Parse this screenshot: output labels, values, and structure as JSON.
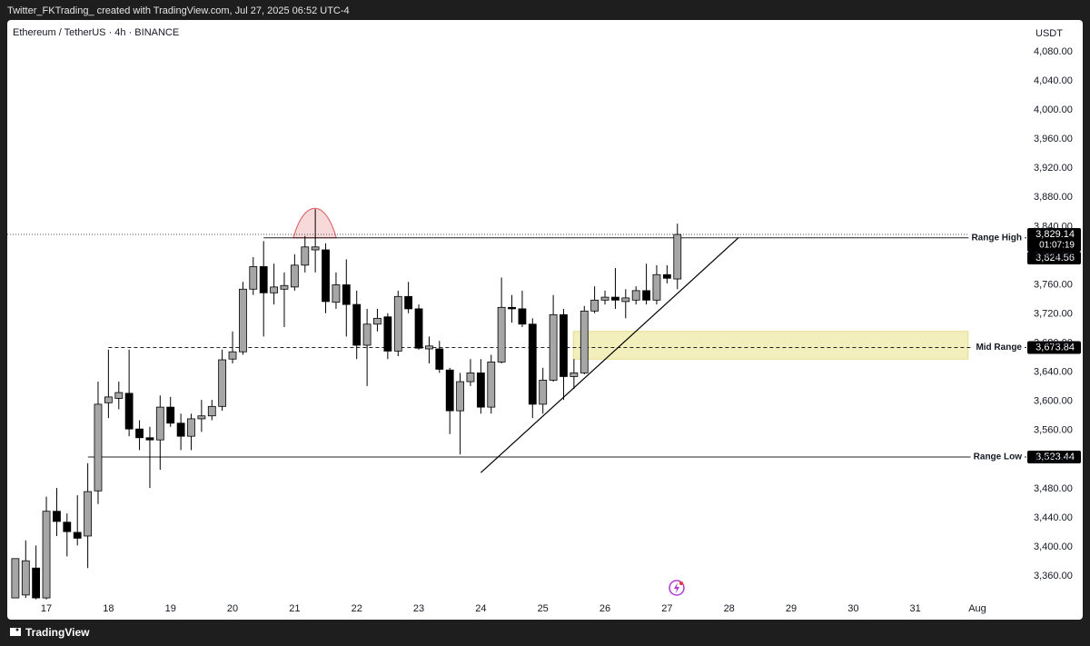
{
  "header": "Twitter_FKTrading_ created with TradingView.com, Jul 27, 2025 06:52 UTC-4",
  "footer": "TradingView",
  "chart_data": {
    "type": "candlestick",
    "title": "Ethereum / TetherUS · 4h · BINANCE",
    "y_unit": "USDT",
    "up_color": "#a6a6a6",
    "down_color": "#000000",
    "x": [
      16.5,
      16.667,
      16.833,
      17,
      17.167,
      17.333,
      17.5,
      17.667,
      17.833,
      18,
      18.167,
      18.333,
      18.5,
      18.667,
      18.833,
      19,
      19.167,
      19.333,
      19.5,
      19.667,
      19.833,
      20,
      20.167,
      20.333,
      20.5,
      20.667,
      20.833,
      21,
      21.167,
      21.333,
      21.5,
      21.667,
      21.833,
      22,
      22.167,
      22.333,
      22.5,
      22.667,
      22.833,
      23,
      23.167,
      23.333,
      23.5,
      23.667,
      23.833,
      24,
      24.167,
      24.333,
      24.5,
      24.667,
      24.833,
      25,
      25.167,
      25.333,
      25.5,
      25.667,
      25.833,
      26,
      26.167,
      26.333,
      26.5,
      26.667,
      26.833,
      27,
      27.167
    ],
    "open": [
      3330,
      3334,
      3371,
      3330,
      3449,
      3434,
      3420,
      3415,
      3477,
      3598,
      3604,
      3611,
      3562,
      3550,
      3547,
      3592,
      3570,
      3552,
      3576,
      3580,
      3593,
      3658,
      3668,
      3754,
      3785,
      3749,
      3754,
      3757,
      3787,
      3808,
      3808,
      3736,
      3760,
      3733,
      3677,
      3706,
      3716,
      3669,
      3744,
      3727,
      3672,
      3672,
      3643,
      3587,
      3627,
      3639,
      3592,
      3654,
      3729,
      3727,
      3706,
      3596,
      3629,
      3719,
      3634,
      3639,
      3724,
      3739,
      3743,
      3737,
      3739,
      3752,
      3739,
      3774,
      3768
    ],
    "high": [
      3384,
      3409,
      3402,
      3469,
      3481,
      3446,
      3471,
      3515,
      3627,
      3671,
      3627,
      3671,
      3574,
      3565,
      3608,
      3606,
      3583,
      3583,
      3602,
      3602,
      3671,
      3696,
      3764,
      3798,
      3820,
      3789,
      3777,
      3802,
      3827,
      3864,
      3817,
      3777,
      3795,
      3752,
      3727,
      3727,
      3721,
      3752,
      3764,
      3733,
      3689,
      3683,
      3646,
      3639,
      3658,
      3658,
      3664,
      3770,
      3746,
      3752,
      3714,
      3646,
      3746,
      3727,
      3658,
      3731,
      3758,
      3752,
      3783,
      3754,
      3758,
      3789,
      3787,
      3787,
      3844
    ],
    "low": [
      3330,
      3330,
      3328,
      3328,
      3415,
      3387,
      3402,
      3371,
      3459,
      3577,
      3589,
      3552,
      3533,
      3481,
      3506,
      3565,
      3533,
      3533,
      3558,
      3574,
      3587,
      3652,
      3664,
      3746,
      3689,
      3733,
      3702,
      3752,
      3777,
      3777,
      3721,
      3727,
      3689,
      3658,
      3621,
      3696,
      3658,
      3662,
      3721,
      3671,
      3652,
      3639,
      3555,
      3527,
      3621,
      3583,
      3583,
      3652,
      3708,
      3702,
      3577,
      3583,
      3627,
      3602,
      3617,
      3637,
      3721,
      3733,
      3727,
      3714,
      3733,
      3733,
      3733,
      3762,
      3754
    ],
    "close": [
      3384,
      3381,
      3330,
      3449,
      3435,
      3421,
      3412,
      3476,
      3596,
      3606,
      3612,
      3562,
      3550,
      3547,
      3592,
      3570,
      3552,
      3576,
      3580,
      3593,
      3657,
      3668,
      3754,
      3785,
      3749,
      3757,
      3759,
      3787,
      3812,
      3812,
      3737,
      3760,
      3733,
      3677,
      3706,
      3714,
      3669,
      3744,
      3727,
      3673,
      3676,
      3644,
      3587,
      3627,
      3639,
      3592,
      3654,
      3729,
      3727,
      3706,
      3596,
      3629,
      3719,
      3634,
      3639,
      3724,
      3739,
      3743,
      3739,
      3742,
      3752,
      3739,
      3774,
      3769,
      3829.14
    ],
    "last_price": {
      "value": 3829.14,
      "label": "3,829.14"
    },
    "countdown": "01:07:19",
    "levels": [
      {
        "name": "Range High",
        "value": 3824.56,
        "label": "3,824.56",
        "start": 20.5,
        "style": "solid"
      },
      {
        "name": "Mid Range",
        "value": 3673.84,
        "label": "3,673.84",
        "start": 18,
        "style": "dashed"
      },
      {
        "name": "Range Low",
        "value": 3523.44,
        "label": "3,523.44",
        "start": 17.67,
        "style": "solid"
      }
    ],
    "zone": {
      "x": [
        25.49,
        31.85
      ],
      "y": [
        3658,
        3696
      ],
      "color": "#f3efbd"
    },
    "trendline": {
      "x": [
        24.0,
        28.15
      ],
      "y": [
        3502,
        3824.56
      ]
    },
    "peak_marker": {
      "x": [
        20.98,
        21.67
      ],
      "y": [
        3824.56,
        3866
      ],
      "color": "#e0676b"
    },
    "xlim": [
      16.37,
      32.79
    ],
    "xticks": [
      17,
      18,
      19,
      20,
      21,
      22,
      23,
      24,
      25,
      26,
      27,
      28,
      29,
      30,
      31,
      {
        "value": 32,
        "label": "Aug"
      }
    ],
    "ylim": [
      3327.6,
      4123.7
    ],
    "yticks": [
      {
        "value": 3360,
        "label": "3,360.00"
      },
      {
        "value": 3400,
        "label": "3,400.00"
      },
      {
        "value": 3440,
        "label": "3,440.00"
      },
      {
        "value": 3480,
        "label": "3,480.00"
      },
      {
        "value": 3520,
        "label": "3,520.00"
      },
      {
        "value": 3560,
        "label": "3,560.00"
      },
      {
        "value": 3600,
        "label": "3,600.00"
      },
      {
        "value": 3640,
        "label": "3,640.00"
      },
      {
        "value": 3680,
        "label": "3,680.00"
      },
      {
        "value": 3720,
        "label": "3,720.00"
      },
      {
        "value": 3760,
        "label": "3,760.00"
      },
      {
        "value": 3800,
        "label": "3,800.00"
      },
      {
        "value": 3840,
        "label": "3,840.00"
      },
      {
        "value": 3880,
        "label": "3,880.00"
      },
      {
        "value": 3920,
        "label": "3,920.00"
      },
      {
        "value": 3960,
        "label": "3,960.00"
      },
      {
        "value": 4000,
        "label": "4,000.00"
      },
      {
        "value": 4040,
        "label": "4,040.00"
      },
      {
        "value": 4080,
        "label": "4,080.00"
      }
    ]
  }
}
